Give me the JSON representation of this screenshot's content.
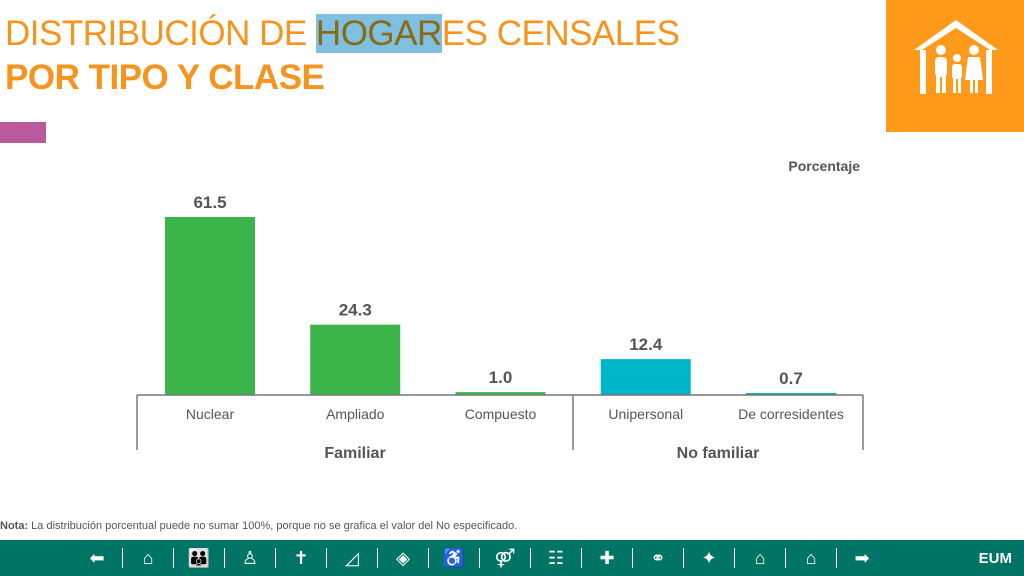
{
  "title": {
    "line1_pre": "DISTRIBUCIÓN DE ",
    "line1_highlight": "HOGAR",
    "line1_post": "ES CENSALES",
    "line2": "POR TIPO Y CLASE"
  },
  "colors": {
    "orange": "#F7941D",
    "familiar": "#3BB54A",
    "no_familiar": "#00B5C8",
    "footer": "#007565"
  },
  "chart_data": {
    "type": "bar",
    "unit_label": "Porcentaje",
    "categories": [
      "Nuclear",
      "Ampliado",
      "Compuesto",
      "Unipersonal",
      "De corresidentes"
    ],
    "values": [
      61.5,
      24.3,
      1.0,
      12.4,
      0.7
    ],
    "value_labels": [
      "61.5",
      "24.3",
      "1.0",
      "12.4",
      "0.7"
    ],
    "groups": [
      {
        "name": "Familiar",
        "members": [
          0,
          1,
          2
        ]
      },
      {
        "name": "No familiar",
        "members": [
          3,
          4
        ]
      }
    ],
    "ylim": [
      0,
      65
    ]
  },
  "note": {
    "bold": "Nota:",
    "text": " La distribución porcentual puede no sumar 100%, porque no se grafica el valor del No especificado."
  },
  "footer": {
    "label": "EUM",
    "icons": [
      "arrow-left-icon",
      "house-person-icon",
      "population-icon",
      "person-icon",
      "mortality-icon",
      "mexico-map-icon",
      "indigenous-icon",
      "disability-icon",
      "couple-icon",
      "family-icon",
      "hospital-icon",
      "rings-icon",
      "religion-icon",
      "households-icon",
      "home-icon",
      "arrow-right-icon"
    ]
  }
}
